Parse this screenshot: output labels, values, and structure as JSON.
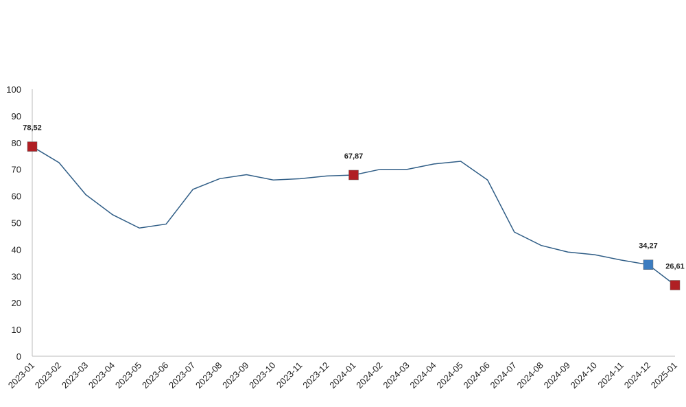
{
  "chart_data": {
    "type": "line",
    "x": [
      "2023-01",
      "2023-02",
      "2023-03",
      "2023-04",
      "2023-05",
      "2023-06",
      "2023-07",
      "2023-08",
      "2023-09",
      "2023-10",
      "2023-11",
      "2023-12",
      "2024-01",
      "2024-02",
      "2024-03",
      "2024-04",
      "2024-05",
      "2024-06",
      "2024-07",
      "2024-08",
      "2024-09",
      "2024-10",
      "2024-11",
      "2024-12",
      "2025-01"
    ],
    "series": [
      {
        "color": "#2f5d86",
        "values": [
          78.52,
          72.5,
          60.5,
          53,
          48,
          49.5,
          62.5,
          66.5,
          68,
          66,
          66.5,
          67.5,
          67.87,
          70,
          70,
          72,
          73,
          66,
          46.5,
          41.5,
          39,
          38,
          36,
          34.27,
          26.61
        ],
        "value_labels": [
          "78,52",
          null,
          null,
          null,
          null,
          null,
          null,
          null,
          null,
          null,
          null,
          null,
          "67,87",
          null,
          null,
          null,
          null,
          null,
          null,
          null,
          null,
          null,
          null,
          "34,27",
          "26,61"
        ],
        "marker_colors": [
          "#b01f24",
          null,
          null,
          null,
          null,
          null,
          null,
          null,
          null,
          null,
          null,
          null,
          "#b01f24",
          null,
          null,
          null,
          null,
          null,
          null,
          null,
          null,
          null,
          null,
          "#3b7cc0",
          "#b01f24"
        ]
      }
    ],
    "ylim": [
      0,
      100
    ],
    "yticks": [
      0,
      10,
      20,
      30,
      40,
      50,
      60,
      70,
      80,
      90,
      100
    ],
    "grid": false
  }
}
